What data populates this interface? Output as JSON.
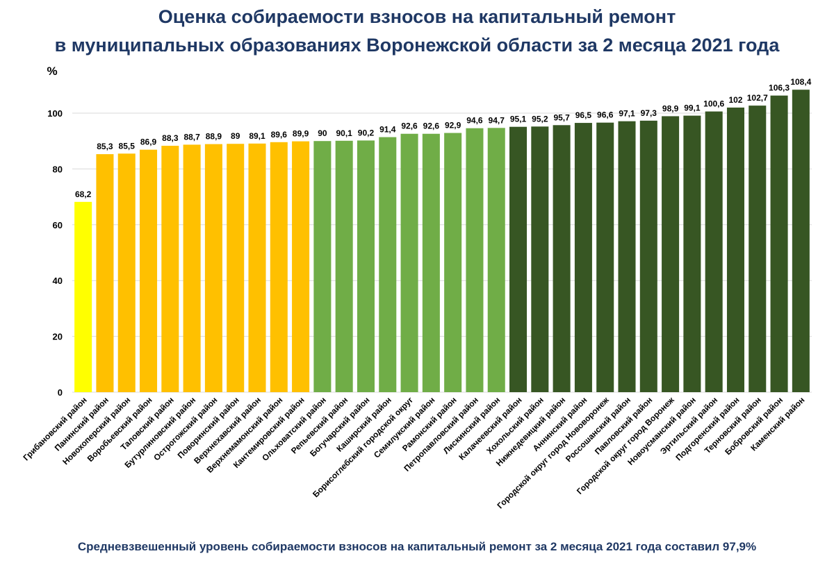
{
  "title_line1": "Оценка собираемости взносов на капитальный ремонт",
  "title_line2": "в муниципальных образованиях Воронежской области за 2 месяца 2021 года",
  "footer": "Средневзвешенный уровень собираемости взносов на капитальный ремонт за 2 месяца 2021 года составил 97,9%",
  "colors": {
    "title": "#1f3864",
    "yellow": "#ffff00",
    "orange": "#ffc000",
    "light_green": "#70ad47",
    "dark_green": "#375623",
    "grid": "#d9d9d9"
  },
  "chart_data": {
    "type": "bar",
    "title": "Оценка собираемости взносов на капитальный ремонт в муниципальных образованиях Воронежской области за 2 месяца 2021 года",
    "ylabel": "%",
    "xlabel": "",
    "ylim": [
      0,
      110
    ],
    "yticks": [
      0,
      20,
      40,
      60,
      80,
      100
    ],
    "grid": true,
    "categories": [
      "Грибановский район",
      "Панинский район",
      "Новохоперский район",
      "Воробьевский район",
      "Таловский район",
      "Бутурлиновский район",
      "Острогожский район",
      "Поворинский район",
      "Верхнехавский район",
      "Верхнемамонский район",
      "Кантемировский район",
      "Ольховатский район",
      "Репьевский район",
      "Богучарский район",
      "Каширский район",
      "Борисоглебский городской округ",
      "Семилукский район",
      "Рамонский район",
      "Петропавловский район",
      "Лискинский район",
      "Калачеевский район",
      "Хохольский район",
      "Нижнедевицкий район",
      "Аннинский район",
      "Городской округ город Нововоронеж",
      "Россошанский район",
      "Павловский район",
      "Городской округ город Воронеж",
      "Новоусманский район",
      "Эртильский район",
      "Подгоренский район",
      "Терновский район",
      "Бобровский район",
      "Каменский район"
    ],
    "values": [
      68.2,
      85.3,
      85.5,
      86.9,
      88.3,
      88.7,
      88.9,
      89,
      89.1,
      89.6,
      89.9,
      90,
      90.1,
      90.2,
      91.4,
      92.6,
      92.6,
      92.9,
      94.6,
      94.7,
      95.1,
      95.2,
      95.7,
      96.5,
      96.6,
      97.1,
      97.3,
      98.9,
      99.1,
      100.6,
      102,
      102.7,
      106.3,
      108.4
    ],
    "value_labels": [
      "68,2",
      "85,3",
      "85,5",
      "86,9",
      "88,3",
      "88,7",
      "88,9",
      "89",
      "89,1",
      "89,6",
      "89,9",
      "90",
      "90,1",
      "90,2",
      "91,4",
      "92,6",
      "92,6",
      "92,9",
      "94,6",
      "94,7",
      "95,1",
      "95,2",
      "95,7",
      "96,5",
      "96,6",
      "97,1",
      "97,3",
      "98,9",
      "99,1",
      "100,6",
      "102",
      "102,7",
      "106,3",
      "108,4"
    ],
    "color_groups": [
      "yellow",
      "orange",
      "orange",
      "orange",
      "orange",
      "orange",
      "orange",
      "orange",
      "orange",
      "orange",
      "orange",
      "light_green",
      "light_green",
      "light_green",
      "light_green",
      "light_green",
      "light_green",
      "light_green",
      "light_green",
      "light_green",
      "dark_green",
      "dark_green",
      "dark_green",
      "dark_green",
      "dark_green",
      "dark_green",
      "dark_green",
      "dark_green",
      "dark_green",
      "dark_green",
      "dark_green",
      "dark_green",
      "dark_green",
      "dark_green"
    ]
  }
}
